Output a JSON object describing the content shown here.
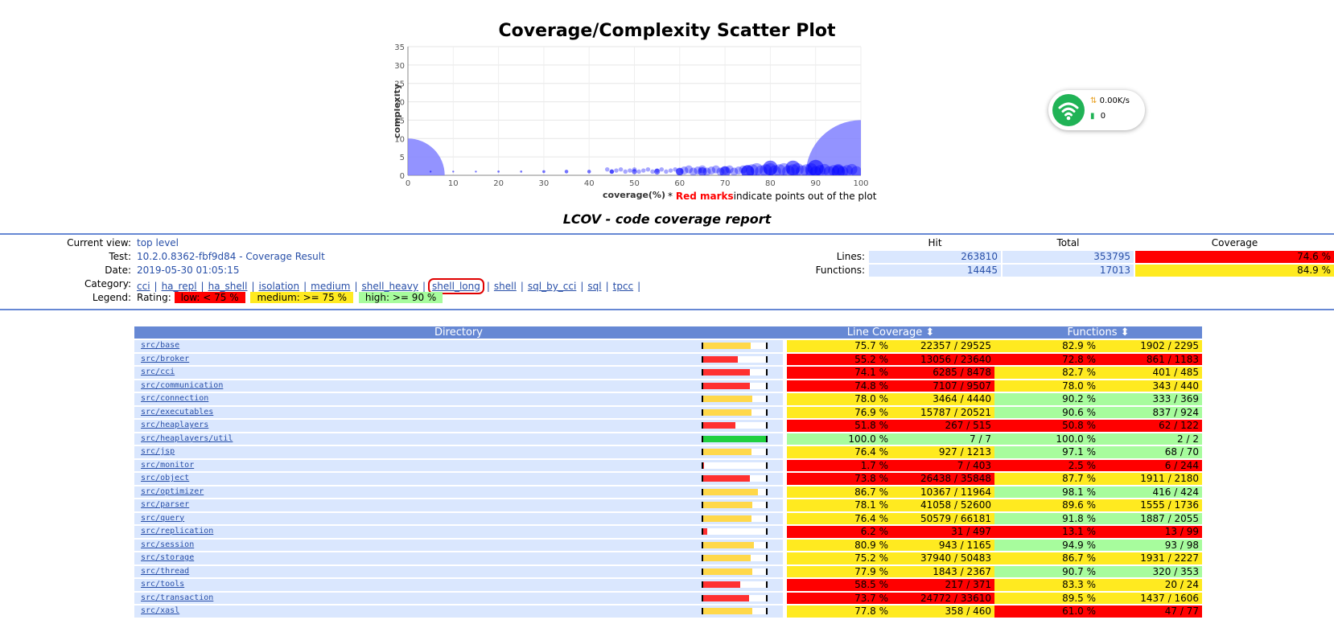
{
  "scatter": {
    "title": "Coverage/Complexity Scatter Plot",
    "xlabel": "coverage(%)",
    "ylabel": "complexity",
    "note_star": "*",
    "note_red": "Red marks",
    "note_rest": "indicate points out of the plot."
  },
  "chart_data": {
    "type": "scatter",
    "title": "Coverage/Complexity Scatter Plot",
    "xlabel": "coverage(%)",
    "ylabel": "complexity",
    "xlim": [
      0,
      100
    ],
    "ylim": [
      0,
      35
    ],
    "xticks": [
      0,
      10,
      20,
      30,
      40,
      50,
      60,
      70,
      80,
      90,
      100
    ],
    "yticks": [
      0,
      5,
      10,
      15,
      20,
      25,
      30,
      35
    ],
    "grid": true,
    "series": [
      {
        "points": [
          {
            "x": 0,
            "y": 0,
            "size": 10
          },
          {
            "x": 100,
            "y": 0,
            "size": 15
          },
          {
            "x": 5,
            "y": 1,
            "size": 0.2
          },
          {
            "x": 10,
            "y": 1,
            "size": 0.2
          },
          {
            "x": 15,
            "y": 1,
            "size": 0.2
          },
          {
            "x": 20,
            "y": 1,
            "size": 0.3
          },
          {
            "x": 25,
            "y": 1,
            "size": 0.3
          },
          {
            "x": 30,
            "y": 1,
            "size": 0.4
          },
          {
            "x": 35,
            "y": 1,
            "size": 0.5
          },
          {
            "x": 40,
            "y": 1,
            "size": 0.5
          },
          {
            "x": 45,
            "y": 1,
            "size": 0.6
          },
          {
            "x": 50,
            "y": 1,
            "size": 0.7
          },
          {
            "x": 55,
            "y": 1,
            "size": 0.8
          },
          {
            "x": 60,
            "y": 1,
            "size": 1.0
          },
          {
            "x": 65,
            "y": 1,
            "size": 1.2
          },
          {
            "x": 70,
            "y": 1,
            "size": 1.5
          },
          {
            "x": 75,
            "y": 1,
            "size": 1.8
          },
          {
            "x": 80,
            "y": 2,
            "size": 2.0
          },
          {
            "x": 85,
            "y": 2,
            "size": 2.0
          },
          {
            "x": 90,
            "y": 2,
            "size": 2.2
          },
          {
            "x": 95,
            "y": 1,
            "size": 1.8
          }
        ]
      }
    ]
  },
  "report": {
    "title": "LCOV - code coverage report",
    "labels": {
      "current_view": "Current view:",
      "test": "Test:",
      "date": "Date:",
      "category": "Category:",
      "legend": "Legend:"
    },
    "current_view": "top level",
    "test": "10.2.0.8362-fbf9d84 - Coverage Result",
    "date": "2019-05-30 01:05:15",
    "categories": [
      "cci",
      "ha_repl",
      "ha_shell",
      "isolation",
      "medium",
      "shell_heavy",
      "shell_long",
      "shell",
      "sql_by_cci",
      "sql",
      "tpcc"
    ],
    "category_sep": "|",
    "legend_rating": "Rating:",
    "legend_low": "low: < 75 %",
    "legend_medium": "medium: >= 75 %",
    "legend_high": "high: >= 90 %"
  },
  "summary": {
    "headers": {
      "hit": "Hit",
      "total": "Total",
      "coverage": "Coverage"
    },
    "lines_label": "Lines:",
    "functions_label": "Functions:",
    "lines": {
      "hit": "263810",
      "total": "353795",
      "coverage": "74.6 %",
      "rating": "low"
    },
    "functions": {
      "hit": "14445",
      "total": "17013",
      "coverage": "84.9 %",
      "rating": "medium"
    }
  },
  "table": {
    "headers": {
      "directory": "Directory",
      "line_coverage": "Line Coverage ⬍",
      "functions": "Functions ⬍"
    },
    "rows": [
      {
        "dir": "src/base",
        "lpct": "75.7 %",
        "lfrac": "22357 / 29525",
        "lval": 75.7,
        "fpct": "82.9 %",
        "ffrac": "1902 / 2295",
        "fval": 82.9
      },
      {
        "dir": "src/broker",
        "lpct": "55.2 %",
        "lfrac": "13056 / 23640",
        "lval": 55.2,
        "fpct": "72.8 %",
        "ffrac": "861 / 1183",
        "fval": 72.8
      },
      {
        "dir": "src/cci",
        "lpct": "74.1 %",
        "lfrac": "6285 / 8478",
        "lval": 74.1,
        "fpct": "82.7 %",
        "ffrac": "401 / 485",
        "fval": 82.7
      },
      {
        "dir": "src/communication",
        "lpct": "74.8 %",
        "lfrac": "7107 / 9507",
        "lval": 74.8,
        "fpct": "78.0 %",
        "ffrac": "343 / 440",
        "fval": 78.0
      },
      {
        "dir": "src/connection",
        "lpct": "78.0 %",
        "lfrac": "3464 / 4440",
        "lval": 78.0,
        "fpct": "90.2 %",
        "ffrac": "333 / 369",
        "fval": 90.2
      },
      {
        "dir": "src/executables",
        "lpct": "76.9 %",
        "lfrac": "15787 / 20521",
        "lval": 76.9,
        "fpct": "90.6 %",
        "ffrac": "837 / 924",
        "fval": 90.6
      },
      {
        "dir": "src/heaplayers",
        "lpct": "51.8 %",
        "lfrac": "267 / 515",
        "lval": 51.8,
        "fpct": "50.8 %",
        "ffrac": "62 / 122",
        "fval": 50.8
      },
      {
        "dir": "src/heaplayers/util",
        "lpct": "100.0 %",
        "lfrac": "7 / 7",
        "lval": 100.0,
        "fpct": "100.0 %",
        "ffrac": "2 / 2",
        "fval": 100.0
      },
      {
        "dir": "src/jsp",
        "lpct": "76.4 %",
        "lfrac": "927 / 1213",
        "lval": 76.4,
        "fpct": "97.1 %",
        "ffrac": "68 / 70",
        "fval": 97.1
      },
      {
        "dir": "src/monitor",
        "lpct": "1.7 %",
        "lfrac": "7 / 403",
        "lval": 1.7,
        "fpct": "2.5 %",
        "ffrac": "6 / 244",
        "fval": 2.5
      },
      {
        "dir": "src/object",
        "lpct": "73.8 %",
        "lfrac": "26438 / 35848",
        "lval": 73.8,
        "fpct": "87.7 %",
        "ffrac": "1911 / 2180",
        "fval": 87.7
      },
      {
        "dir": "src/optimizer",
        "lpct": "86.7 %",
        "lfrac": "10367 / 11964",
        "lval": 86.7,
        "fpct": "98.1 %",
        "ffrac": "416 / 424",
        "fval": 98.1
      },
      {
        "dir": "src/parser",
        "lpct": "78.1 %",
        "lfrac": "41058 / 52600",
        "lval": 78.1,
        "fpct": "89.6 %",
        "ffrac": "1555 / 1736",
        "fval": 89.6
      },
      {
        "dir": "src/query",
        "lpct": "76.4 %",
        "lfrac": "50579 / 66181",
        "lval": 76.4,
        "fpct": "91.8 %",
        "ffrac": "1887 / 2055",
        "fval": 91.8
      },
      {
        "dir": "src/replication",
        "lpct": "6.2 %",
        "lfrac": "31 / 497",
        "lval": 6.2,
        "fpct": "13.1 %",
        "ffrac": "13 / 99",
        "fval": 13.1
      },
      {
        "dir": "src/session",
        "lpct": "80.9 %",
        "lfrac": "943 / 1165",
        "lval": 80.9,
        "fpct": "94.9 %",
        "ffrac": "93 / 98",
        "fval": 94.9
      },
      {
        "dir": "src/storage",
        "lpct": "75.2 %",
        "lfrac": "37940 / 50483",
        "lval": 75.2,
        "fpct": "86.7 %",
        "ffrac": "1931 / 2227",
        "fval": 86.7
      },
      {
        "dir": "src/thread",
        "lpct": "77.9 %",
        "lfrac": "1843 / 2367",
        "lval": 77.9,
        "fpct": "90.7 %",
        "ffrac": "320 / 353",
        "fval": 90.7
      },
      {
        "dir": "src/tools",
        "lpct": "58.5 %",
        "lfrac": "217 / 371",
        "lval": 58.5,
        "fpct": "83.3 %",
        "ffrac": "20 / 24",
        "fval": 83.3
      },
      {
        "dir": "src/transaction",
        "lpct": "73.7 %",
        "lfrac": "24772 / 33610",
        "lval": 73.7,
        "fpct": "89.5 %",
        "ffrac": "1437 / 1606",
        "fval": 89.5
      },
      {
        "dir": "src/xasl",
        "lpct": "77.8 %",
        "lfrac": "358 / 460",
        "lval": 77.8,
        "fpct": "61.0 %",
        "ffrac": "47 / 77",
        "fval": 61.0
      }
    ]
  },
  "net_widget": {
    "speed": "0.00K/s",
    "count": "0",
    "icon": "wifi-icon"
  },
  "colors": {
    "low": "#ff0000",
    "medium": "#ffea20",
    "high": "#a7fc9d",
    "header_blue": "#6688d4",
    "row_bg": "#dae7fe",
    "link": "#284fa8",
    "bubble": "#0000ff",
    "bubble_big": "#8080ff",
    "wifi_green": "#20b356"
  }
}
